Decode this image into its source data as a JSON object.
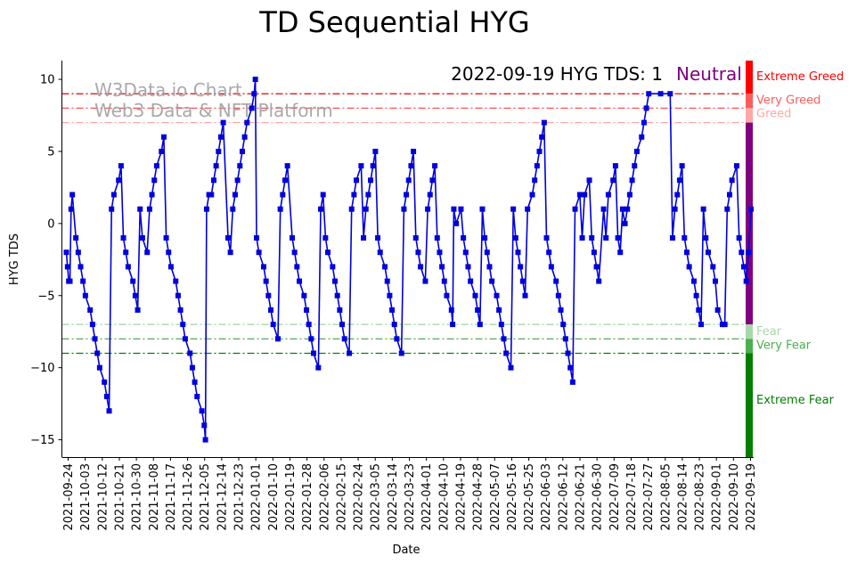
{
  "chart_data": {
    "type": "line",
    "title": "TD Sequential HYG",
    "xlabel": "Date",
    "ylabel": "HYG TDS",
    "ylim": [
      -16.2,
      11.3
    ],
    "yticks": [
      10,
      5,
      0,
      -5,
      -10,
      -15
    ],
    "xtick_labels": [
      "2021-09-24",
      "2021-10-03",
      "2021-10-12",
      "2021-10-21",
      "2021-10-30",
      "2021-11-08",
      "2021-11-17",
      "2021-11-26",
      "2021-12-05",
      "2021-12-14",
      "2021-12-23",
      "2022-01-01",
      "2022-01-10",
      "2022-01-19",
      "2022-01-28",
      "2022-02-06",
      "2022-02-15",
      "2022-02-24",
      "2022-03-05",
      "2022-03-14",
      "2022-03-23",
      "2022-04-01",
      "2022-04-10",
      "2022-04-19",
      "2022-04-28",
      "2022-05-07",
      "2022-05-16",
      "2022-05-25",
      "2022-06-03",
      "2022-06-12",
      "2022-06-21",
      "2022-06-30",
      "2022-07-09",
      "2022-07-18",
      "2022-07-27",
      "2022-08-05",
      "2022-08-14",
      "2022-08-23",
      "2022-09-01",
      "2022-09-10",
      "2022-09-19"
    ],
    "annotation_date_text": "2022-09-19 HYG TDS: 1",
    "annotation_status": "Neutral",
    "watermark": [
      "W3Data.io Chart",
      "Web3 Data & NFT Platform"
    ],
    "series_color": "#0000dd",
    "series": [
      {
        "name": "HYG TDS",
        "points": [
          [
            0,
            -2
          ],
          [
            0.5,
            -3
          ],
          [
            1,
            -4
          ],
          [
            1.5,
            -4
          ],
          [
            2,
            1
          ],
          [
            2.5,
            2
          ],
          [
            4,
            -1
          ],
          [
            5,
            -2
          ],
          [
            6,
            -3
          ],
          [
            7,
            -4
          ],
          [
            8,
            -5
          ],
          [
            10,
            -6
          ],
          [
            11,
            -7
          ],
          [
            12,
            -8
          ],
          [
            13,
            -9
          ],
          [
            14,
            -10
          ],
          [
            16,
            -11
          ],
          [
            17,
            -12
          ],
          [
            18,
            -13
          ],
          [
            19,
            1
          ],
          [
            20,
            2
          ],
          [
            22,
            3
          ],
          [
            23,
            4
          ],
          [
            24,
            -1
          ],
          [
            25,
            -2
          ],
          [
            26,
            -3
          ],
          [
            28,
            -4
          ],
          [
            29,
            -5
          ],
          [
            30,
            -6
          ],
          [
            31,
            1
          ],
          [
            32,
            -1
          ],
          [
            34,
            -2
          ],
          [
            35,
            1
          ],
          [
            36,
            2
          ],
          [
            37,
            3
          ],
          [
            38,
            4
          ],
          [
            40,
            5
          ],
          [
            41,
            6
          ],
          [
            42,
            -1
          ],
          [
            43,
            -2
          ],
          [
            44,
            -3
          ],
          [
            46,
            -4
          ],
          [
            47,
            -5
          ],
          [
            48,
            -6
          ],
          [
            49,
            -7
          ],
          [
            50,
            -8
          ],
          [
            52,
            -9
          ],
          [
            53,
            -10
          ],
          [
            54,
            -11
          ],
          [
            55,
            -12
          ],
          [
            57,
            -13
          ],
          [
            58,
            -14
          ],
          [
            58.5,
            -15
          ],
          [
            59,
            1
          ],
          [
            60,
            2
          ],
          [
            61,
            2
          ],
          [
            62,
            3
          ],
          [
            63,
            4
          ],
          [
            64,
            5
          ],
          [
            65,
            6
          ],
          [
            66,
            7
          ],
          [
            68,
            -1
          ],
          [
            69,
            -2
          ],
          [
            70,
            1
          ],
          [
            71,
            2
          ],
          [
            72,
            3
          ],
          [
            73,
            4
          ],
          [
            74,
            5
          ],
          [
            75,
            6
          ],
          [
            76,
            7
          ],
          [
            78,
            8
          ],
          [
            79,
            9
          ],
          [
            79.5,
            10
          ],
          [
            80,
            -1
          ],
          [
            81,
            -2
          ],
          [
            83,
            -3
          ],
          [
            84,
            -4
          ],
          [
            85,
            -5
          ],
          [
            86,
            -6
          ],
          [
            87,
            -7
          ],
          [
            89,
            -8
          ],
          [
            90,
            1
          ],
          [
            91,
            2
          ],
          [
            92,
            3
          ],
          [
            93,
            4
          ],
          [
            95,
            -1
          ],
          [
            96,
            -2
          ],
          [
            97,
            -3
          ],
          [
            98,
            -4
          ],
          [
            100,
            -5
          ],
          [
            101,
            -6
          ],
          [
            102,
            -7
          ],
          [
            103,
            -8
          ],
          [
            104,
            -9
          ],
          [
            106,
            -10
          ],
          [
            107,
            1
          ],
          [
            108,
            2
          ],
          [
            109,
            -1
          ],
          [
            110,
            -2
          ],
          [
            112,
            -3
          ],
          [
            113,
            -4
          ],
          [
            114,
            -5
          ],
          [
            115,
            -6
          ],
          [
            116,
            -7
          ],
          [
            117,
            -8
          ],
          [
            119,
            -9
          ],
          [
            120,
            1
          ],
          [
            121,
            2
          ],
          [
            122,
            3
          ],
          [
            124,
            4
          ],
          [
            125,
            -1
          ],
          [
            126,
            1
          ],
          [
            127,
            2
          ],
          [
            128,
            3
          ],
          [
            129,
            4
          ],
          [
            130,
            5
          ],
          [
            131,
            -1
          ],
          [
            132,
            -2
          ],
          [
            134,
            -3
          ],
          [
            135,
            -4
          ],
          [
            136,
            -5
          ],
          [
            137,
            -6
          ],
          [
            138,
            -7
          ],
          [
            139,
            -8
          ],
          [
            141,
            -9
          ],
          [
            142,
            1
          ],
          [
            143,
            2
          ],
          [
            144,
            3
          ],
          [
            145,
            4
          ],
          [
            146,
            5
          ],
          [
            147,
            -1
          ],
          [
            148,
            -2
          ],
          [
            149,
            -3
          ],
          [
            151,
            -4
          ],
          [
            152,
            1
          ],
          [
            153,
            2
          ],
          [
            154,
            3
          ],
          [
            155,
            4
          ],
          [
            156,
            -1
          ],
          [
            157,
            -2
          ],
          [
            158,
            -3
          ],
          [
            159,
            -4
          ],
          [
            160,
            -5
          ],
          [
            162,
            -6
          ],
          [
            162.5,
            -7
          ],
          [
            163,
            1
          ],
          [
            164,
            0
          ],
          [
            166,
            1
          ],
          [
            167,
            -1
          ],
          [
            168,
            -2
          ],
          [
            169,
            -3
          ],
          [
            170,
            -4
          ],
          [
            172,
            -5
          ],
          [
            173,
            -6
          ],
          [
            174,
            -7
          ],
          [
            175,
            1
          ],
          [
            176,
            -1
          ],
          [
            177,
            -2
          ],
          [
            178,
            -3
          ],
          [
            179,
            -4
          ],
          [
            181,
            -5
          ],
          [
            182,
            -6
          ],
          [
            183,
            -7
          ],
          [
            184,
            -8
          ],
          [
            185,
            -9
          ],
          [
            187,
            -10
          ],
          [
            188,
            1
          ],
          [
            189,
            -1
          ],
          [
            190,
            -2
          ],
          [
            191,
            -3
          ],
          [
            192,
            -4
          ],
          [
            193,
            -5
          ],
          [
            194,
            1
          ],
          [
            196,
            2
          ],
          [
            197,
            3
          ],
          [
            198,
            4
          ],
          [
            199,
            5
          ],
          [
            200,
            6
          ],
          [
            201,
            7
          ],
          [
            202,
            -1
          ],
          [
            203,
            -2
          ],
          [
            204,
            -3
          ],
          [
            206,
            -4
          ],
          [
            207,
            -5
          ],
          [
            208,
            -6
          ],
          [
            209,
            -7
          ],
          [
            210,
            -8
          ],
          [
            211,
            -9
          ],
          [
            212,
            -10
          ],
          [
            213,
            -11
          ],
          [
            214,
            1
          ],
          [
            216,
            2
          ],
          [
            217,
            -1
          ],
          [
            218,
            2
          ],
          [
            220,
            3
          ],
          [
            221,
            -1
          ],
          [
            222,
            -2
          ],
          [
            223,
            -3
          ],
          [
            224,
            -4
          ],
          [
            226,
            1
          ],
          [
            227,
            -1
          ],
          [
            228,
            2
          ],
          [
            230,
            3
          ],
          [
            231,
            4
          ],
          [
            232,
            -1
          ],
          [
            233,
            -2
          ],
          [
            234,
            1
          ],
          [
            235,
            0
          ],
          [
            236,
            1
          ],
          [
            237,
            2
          ],
          [
            238,
            3
          ],
          [
            239,
            4
          ],
          [
            240,
            5
          ],
          [
            242,
            6
          ],
          [
            243,
            7
          ],
          [
            244,
            8
          ],
          [
            245,
            9
          ],
          [
            250,
            9
          ],
          [
            254,
            9
          ],
          [
            255,
            -1
          ],
          [
            256,
            1
          ],
          [
            257,
            2
          ],
          [
            258,
            3
          ],
          [
            259,
            4
          ],
          [
            260,
            -1
          ],
          [
            261,
            -2
          ],
          [
            262,
            -3
          ],
          [
            264,
            -4
          ],
          [
            265,
            -5
          ],
          [
            266,
            -6
          ],
          [
            267,
            -7
          ],
          [
            268,
            1
          ],
          [
            269,
            -1
          ],
          [
            270,
            -2
          ],
          [
            272,
            -3
          ],
          [
            273,
            -4
          ],
          [
            274,
            -6
          ],
          [
            276,
            -7
          ],
          [
            277,
            -7
          ],
          [
            278,
            1
          ],
          [
            279,
            2
          ],
          [
            280,
            3
          ],
          [
            282,
            4
          ],
          [
            283,
            -1
          ],
          [
            284,
            -2
          ],
          [
            285,
            -3
          ],
          [
            286,
            -4
          ],
          [
            287,
            -2
          ],
          [
            288,
            1
          ]
        ]
      }
    ],
    "zones": [
      {
        "label": "Extreme Greed",
        "from": 9,
        "to": 11.3,
        "color": "#ff0000",
        "line_color": "#e00000"
      },
      {
        "label": "Very Greed",
        "from": 8,
        "to": 9,
        "color": "#ff5c5c",
        "line_color": "#ff5050"
      },
      {
        "label": "Greed",
        "from": 7,
        "to": 8,
        "color": "#ffa8a8",
        "line_color": "#ffa0a0"
      },
      {
        "label": "",
        "from": -7,
        "to": 7,
        "color": "#800080",
        "line_color": ""
      },
      {
        "label": "Fear",
        "from": -8,
        "to": -7,
        "color": "#a8d8a8",
        "line_color": "#a0d0a0"
      },
      {
        "label": "Very Fear",
        "from": -9,
        "to": -8,
        "color": "#4caf50",
        "line_color": "#40a040"
      },
      {
        "label": "Extreme Fear",
        "from": -16.2,
        "to": -9,
        "color": "#008000",
        "line_color": "#008000"
      }
    ]
  }
}
